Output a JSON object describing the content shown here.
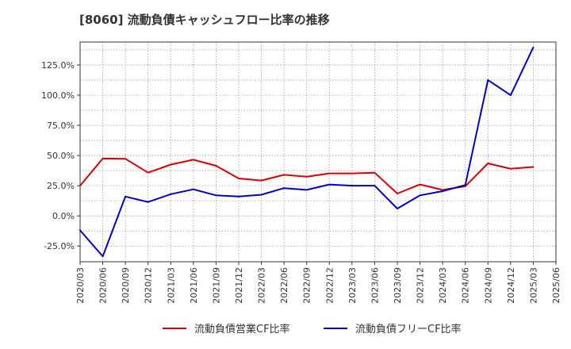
{
  "chart_data": {
    "type": "line",
    "title": "[8060]  流動負債キャッシュフロー比率の推移",
    "x": [
      "2020/03",
      "2020/06",
      "2020/09",
      "2020/12",
      "2021/03",
      "2021/06",
      "2021/09",
      "2021/12",
      "2022/03",
      "2022/06",
      "2022/09",
      "2022/12",
      "2023/03",
      "2023/06",
      "2023/09",
      "2023/12",
      "2024/03",
      "2024/06",
      "2024/09",
      "2024/12",
      "2025/03",
      "2025/06"
    ],
    "y_ticks": [
      "-25.0%",
      "0.0%",
      "25.0%",
      "50.0%",
      "75.0%",
      "100.0%",
      "125.0%"
    ],
    "ylim": [
      -38,
      144
    ],
    "grid": true,
    "legend_position": "bottom",
    "series": [
      {
        "name": "流動負債営業CF比率",
        "color": "#dd0000",
        "values": [
          25.0,
          47.5,
          47.3,
          35.8,
          42.5,
          46.5,
          41.5,
          31.0,
          29.3,
          34.0,
          32.5,
          35.2,
          35.2,
          35.8,
          18.5,
          26.0,
          21.5,
          24.5,
          43.5,
          39.0,
          40.5,
          null
        ]
      },
      {
        "name": "流動負債フリーCF比率",
        "color": "#0000cc",
        "values": [
          -12.0,
          -33.5,
          16.0,
          11.5,
          18.0,
          22.0,
          17.0,
          16.0,
          17.5,
          23.0,
          21.5,
          26.0,
          25.0,
          25.0,
          6.0,
          17.0,
          20.5,
          25.5,
          112.5,
          100.0,
          139.5,
          null
        ]
      }
    ]
  }
}
